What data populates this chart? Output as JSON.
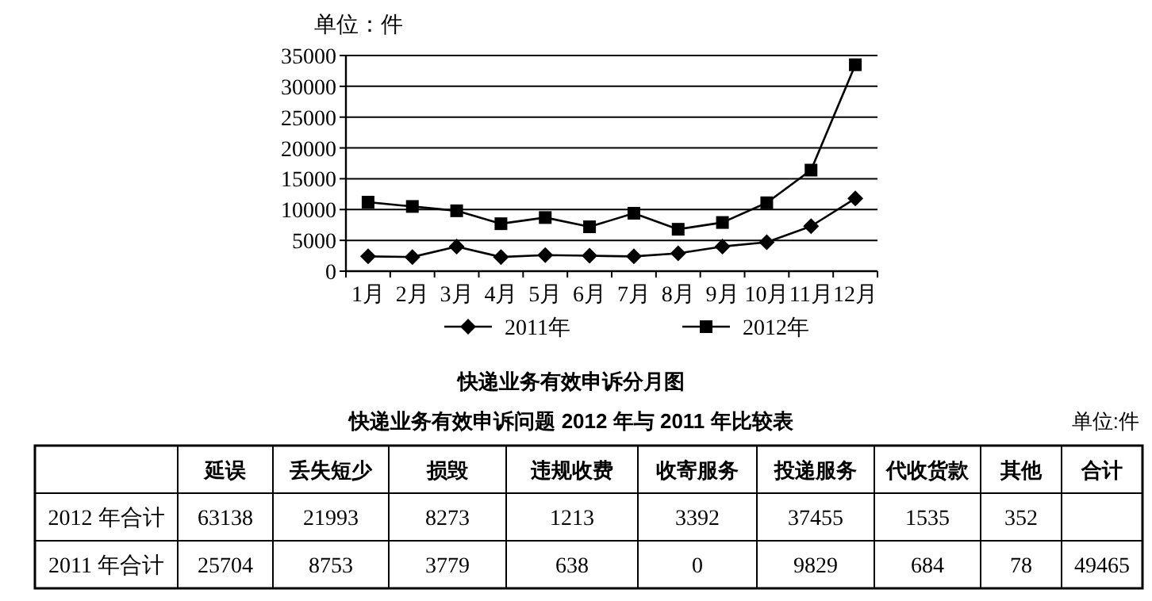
{
  "chart_data": [
    {
      "type": "line",
      "title": "快递业务有效申诉分月图",
      "ylabel": "单位：件",
      "categories": [
        "1月",
        "2月",
        "3月",
        "4月",
        "5月",
        "6月",
        "7月",
        "8月",
        "9月",
        "10月",
        "11月",
        "12月"
      ],
      "series": [
        {
          "name": "2011年",
          "color": "#000000",
          "marker": "diamond",
          "values": [
            2400,
            2300,
            4000,
            2300,
            2600,
            2500,
            2400,
            2900,
            4000,
            4700,
            7300,
            11800
          ]
        },
        {
          "name": "2012年",
          "color": "#000000",
          "marker": "square",
          "values": [
            11200,
            10500,
            9800,
            7700,
            8700,
            7200,
            9400,
            6800,
            7900,
            11100,
            16400,
            33500
          ]
        }
      ],
      "ylim": [
        0,
        35000
      ],
      "yticks": [
        0,
        5000,
        10000,
        15000,
        20000,
        25000,
        30000,
        35000
      ],
      "grid": "y",
      "legend": "bottom"
    },
    {
      "type": "heatmap",
      "title": "快递业务有效申诉问题 2012 年与 2011 年比较表",
      "annotations": [
        "单位:件"
      ],
      "categories": [
        "延误",
        "丢失短少",
        "损毁",
        "违规收费",
        "收寄服务",
        "投递服务",
        "代收货款",
        "其他",
        "合计"
      ],
      "y_categories": [
        "2012 年合计",
        "2011 年合计"
      ],
      "cells": [
        [
          63138,
          21993,
          8273,
          1213,
          3392,
          37455,
          1535,
          352,
          null
        ],
        [
          25704,
          8753,
          3779,
          638,
          0,
          9829,
          684,
          78,
          49465
        ]
      ],
      "data_labels": true
    }
  ]
}
